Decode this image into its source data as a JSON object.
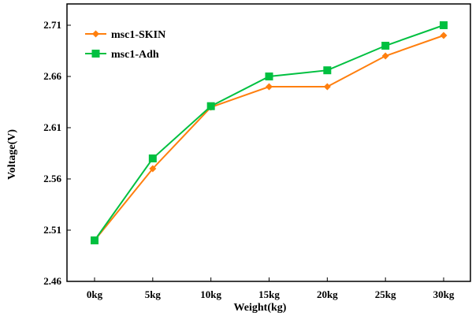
{
  "chart_data": {
    "type": "line",
    "title": "",
    "xlabel": "Weight(kg)",
    "ylabel": "Voltage(V)",
    "categories": [
      "0kg",
      "5kg",
      "10kg",
      "15kg",
      "20kg",
      "25kg",
      "30kg"
    ],
    "ylim": [
      2.46,
      2.71
    ],
    "yticks": [
      "2.71",
      "2.66",
      "2.61",
      "2.56",
      "2.51",
      "2.46"
    ],
    "grid": false,
    "legend_position": "top-left",
    "series": [
      {
        "name": "msc1-SKIN",
        "color": "#ff7f0e",
        "marker": "diamond",
        "values": [
          2.5,
          2.57,
          2.63,
          2.65,
          2.65,
          2.68,
          2.7
        ]
      },
      {
        "name": "msc1-Adh",
        "color": "#00c040",
        "marker": "square",
        "values": [
          2.5,
          2.58,
          2.631,
          2.66,
          2.666,
          2.69,
          2.71
        ]
      }
    ]
  }
}
